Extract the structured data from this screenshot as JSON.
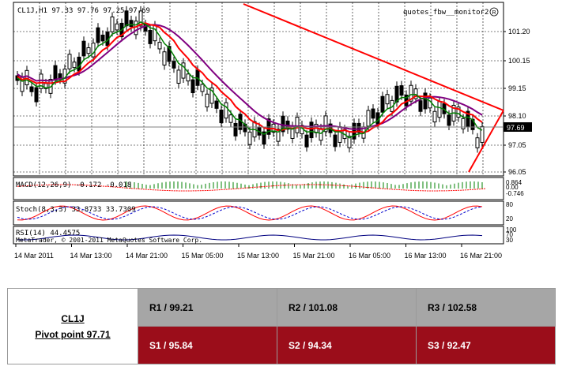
{
  "chart": {
    "header": "CL1J,H1  97.33 97.76 97.25 97.69",
    "watermark": "quotes_fbw__monitor2",
    "watermark_icon": "registered-icon",
    "current_price_label": "97.69",
    "price_axis": [
      "101.20",
      "100.15",
      "99.15",
      "98.10",
      "97.05",
      "96.05"
    ],
    "time_axis": [
      "14 Mar 2011",
      "14 Mar 13:00",
      "14 Mar 21:00",
      "15 Mar 05:00",
      "15 Mar 13:00",
      "15 Mar 21:00",
      "16 Mar 05:00",
      "16 Mar 13:00",
      "16 Mar 21:00"
    ],
    "macd_label": "MACD(12,26,9) -0.172 -0.018",
    "macd_axis": [
      "0.864",
      "0.00",
      "-0.746"
    ],
    "stoch_label": "Stoch(8,3,3) 33.8733 33.7309",
    "stoch_axis": [
      "80",
      "20"
    ],
    "rsi_label": "RSI(14) 44.4575",
    "rsi_axis": [
      "100",
      "70",
      "30"
    ],
    "copyright": "MetaTrader, © 2001-2011 MetaQuotes Software Corp.",
    "colors": {
      "trendline": "#ff0000",
      "ma_fast": "#008000",
      "ma_mid": "#ff0000",
      "ma_slow": "#800080",
      "grid": "#000000"
    }
  },
  "pivot": {
    "symbol": "CL1J",
    "pivot_label": "Pivot point 97.71",
    "resistance": [
      "R1 / 99.21",
      "R2  / 101.08",
      "R3 / 102.58"
    ],
    "support": [
      "S1 / 95.84",
      "S2 /  94.34",
      "S3 /  92.47"
    ],
    "colors": {
      "resistance_bg": "#a6a6a6",
      "support_bg": "#9b0d1a"
    }
  }
}
